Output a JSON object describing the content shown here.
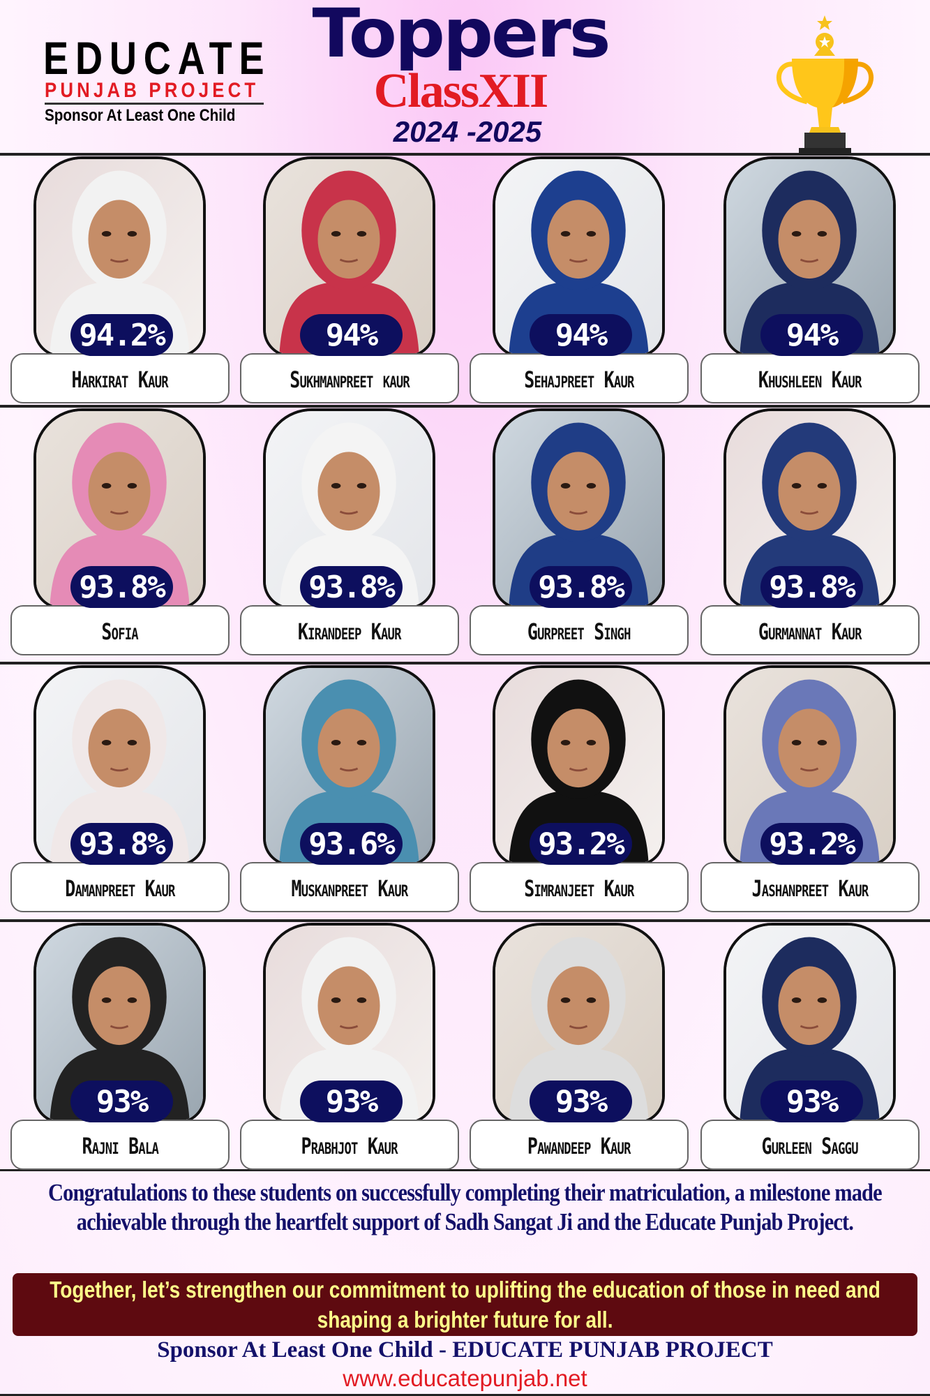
{
  "logo": {
    "line1": "EDUCATE",
    "line2": "PUNJAB PROJECT",
    "line3": "Sponsor At Least One Child"
  },
  "header": {
    "title": "Toppers",
    "subtitle": "ClassXII",
    "year": "2024 -2025",
    "trophy_icon": "trophy-icon"
  },
  "colors": {
    "navy": "#12085e",
    "red": "#e21b23",
    "pill": "#0d0f5e",
    "maroon": "#5e0a10",
    "yellow_text": "#ffff8a"
  },
  "students": [
    {
      "name": "Harkirat Kaur",
      "percent": "94.2%"
    },
    {
      "name": "Sukhmanpreet kaur",
      "percent": "94%"
    },
    {
      "name": "Sehajpreet Kaur",
      "percent": "94%"
    },
    {
      "name": "Khushleen Kaur",
      "percent": "94%"
    },
    {
      "name": "Sofia",
      "percent": "93.8%"
    },
    {
      "name": "Kirandeep Kaur",
      "percent": "93.8%"
    },
    {
      "name": "Gurpreet Singh",
      "percent": "93.8%"
    },
    {
      "name": "Gurmannat Kaur",
      "percent": "93.8%"
    },
    {
      "name": "Damanpreet Kaur",
      "percent": "93.8%"
    },
    {
      "name": "Muskanpreet Kaur",
      "percent": "93.6%"
    },
    {
      "name": "Simranjeet Kaur",
      "percent": "93.2%"
    },
    {
      "name": "Jashanpreet Kaur",
      "percent": "93.2%"
    },
    {
      "name": "Rajni Bala",
      "percent": "93%"
    },
    {
      "name": "Prabhjot Kaur",
      "percent": "93%"
    },
    {
      "name": "Pawandeep Kaur",
      "percent": "93%"
    },
    {
      "name": "Gurleen Saggu",
      "percent": "93%"
    }
  ],
  "footer": {
    "congrats": "Congratulations to these students on successfully completing their matriculation, a milestone made achievable through the heartfelt support of Sadh Sangat Ji and the Educate Punjab Project.",
    "together": "Together, let’s strengthen our commitment to uplifting the education of those in need and shaping a brighter future for all.",
    "sponsor": "Sponsor At Least One Child - EDUCATE PUNJAB PROJECT",
    "url": "www.educatepunjab.net"
  }
}
